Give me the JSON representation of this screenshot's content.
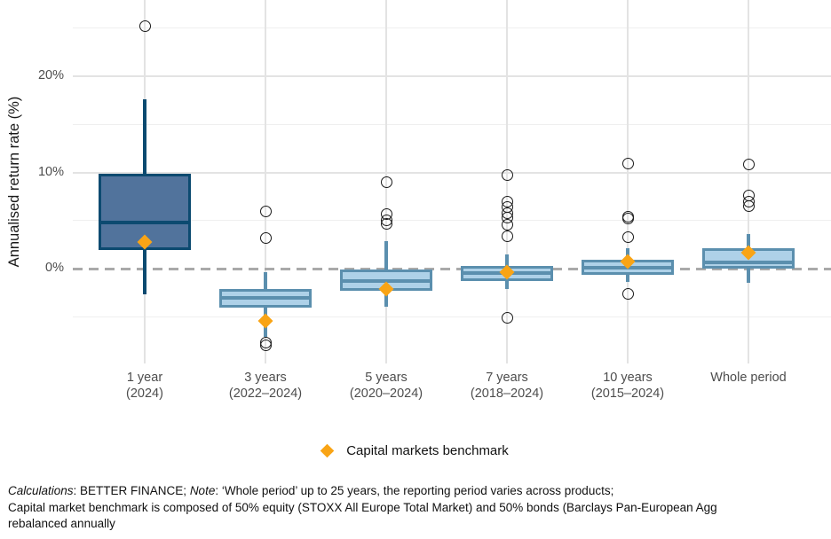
{
  "chart_data": {
    "type": "boxplot",
    "title": "",
    "ylabel": "Annualised return rate (%)",
    "yticks": [
      {
        "value": 0,
        "label": "0%"
      },
      {
        "value": 10,
        "label": "10%"
      },
      {
        "value": 20,
        "label": "20%"
      }
    ],
    "major_grid_values": [
      10,
      20
    ],
    "minor_grid_values": [
      -5,
      5,
      15,
      25
    ],
    "zero_reference_line": 0,
    "ylim": [
      -9.9,
      27.9
    ],
    "grid": true,
    "legend": {
      "marker": "diamond",
      "label": "Capital markets benchmark",
      "position": "bottom"
    },
    "categories": [
      {
        "label_line1": "1 year",
        "label_line2": "(2024)",
        "q1": 1.9,
        "median": 4.8,
        "q3": 9.9,
        "whisker_low": -2.7,
        "whisker_high": 17.6,
        "benchmark": 2.8,
        "outliers": [
          25.2
        ],
        "style": "dark"
      },
      {
        "label_line1": "3 years",
        "label_line2": "(2022–2024)",
        "q1": -4.1,
        "median": -3.0,
        "q3": -2.1,
        "whisker_low": -7.1,
        "whisker_high": -0.4,
        "benchmark": -5.4,
        "outliers": [
          5.9,
          3.2,
          -7.7,
          -8.0
        ],
        "style": "light"
      },
      {
        "label_line1": "5 years",
        "label_line2": "(2020–2024)",
        "q1": -2.3,
        "median": -1.3,
        "q3": -0.1,
        "whisker_low": -4.0,
        "whisker_high": 2.9,
        "benchmark": -2.1,
        "outliers": [
          9.0,
          5.7,
          5.0,
          4.7
        ],
        "style": "light"
      },
      {
        "label_line1": "7 years",
        "label_line2": "(2018–2024)",
        "q1": -1.3,
        "median": -0.5,
        "q3": 0.3,
        "whisker_low": -2.1,
        "whisker_high": 1.5,
        "benchmark": -0.4,
        "outliers": [
          9.7,
          7.0,
          6.4,
          5.8,
          5.3,
          4.6,
          3.4,
          -5.1
        ],
        "style": "light"
      },
      {
        "label_line1": "10 years",
        "label_line2": "(2015–2024)",
        "q1": -0.6,
        "median": 0.1,
        "q3": 0.9,
        "whisker_low": -1.4,
        "whisker_high": 2.1,
        "benchmark": 0.7,
        "outliers": [
          10.9,
          5.4,
          5.2,
          3.3,
          -2.6
        ],
        "style": "light"
      },
      {
        "label_line1": "Whole period",
        "label_line2": "",
        "q1": 0.0,
        "median": 0.6,
        "q3": 2.1,
        "whisker_low": -1.5,
        "whisker_high": 3.6,
        "benchmark": 1.7,
        "outliers": [
          10.8,
          7.6,
          7.0,
          6.5
        ],
        "style": "light"
      }
    ],
    "colors": {
      "box_dark_fill": "#51739c",
      "box_dark_border": "#0c4a70",
      "box_light_fill": "#aed1e8",
      "box_light_border": "#5b8fae",
      "benchmark": "#f9a415",
      "zero_line": "#a9a9a9",
      "grid_major": "#e3e3e3",
      "grid_minor": "#efefef",
      "outlier_stroke": "#1a1a1a"
    }
  },
  "footer": {
    "line1_parts": [
      {
        "text": "Calculations",
        "italic": true
      },
      {
        "text": ": BETTER FINANCE; ",
        "italic": false
      },
      {
        "text": "Note",
        "italic": true
      },
      {
        "text": ": ‘Whole period’ up to 25 years, the reporting period varies across products;",
        "italic": false
      }
    ],
    "line2": "Capital market benchmark is composed of 50% equity (STOXX All Europe Total Market) and 50% bonds (Barclays Pan-European Agg",
    "line3": "rebalanced annually"
  }
}
